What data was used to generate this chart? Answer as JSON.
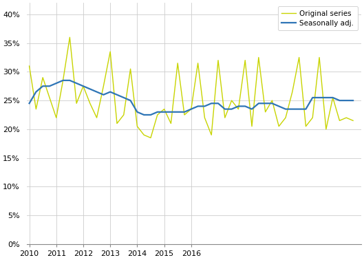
{
  "original_series": [
    31.0,
    23.5,
    29.0,
    25.5,
    22.0,
    28.5,
    36.0,
    24.5,
    27.5,
    24.5,
    22.0,
    27.5,
    33.5,
    21.0,
    22.5,
    30.5,
    20.5,
    19.0,
    18.5,
    22.5,
    23.5,
    21.0,
    31.5,
    22.5,
    23.5,
    31.5,
    22.0,
    19.0,
    32.0,
    22.0,
    25.0,
    23.5,
    32.0,
    20.5,
    32.5,
    23.0,
    25.0,
    20.5,
    22.0,
    26.5,
    32.5,
    20.5,
    22.0,
    32.5,
    20.0,
    25.5,
    21.5,
    22.0,
    21.5
  ],
  "seasonally_adj": [
    24.5,
    26.5,
    27.5,
    27.5,
    28.0,
    28.5,
    28.5,
    28.0,
    27.5,
    27.0,
    26.5,
    26.0,
    26.5,
    26.0,
    25.5,
    25.0,
    23.0,
    22.5,
    22.5,
    23.0,
    23.0,
    23.0,
    23.0,
    23.0,
    23.5,
    24.0,
    24.0,
    24.5,
    24.5,
    23.5,
    23.5,
    24.0,
    24.0,
    23.5,
    24.5,
    24.5,
    24.5,
    24.0,
    23.5,
    23.5,
    23.5,
    23.5,
    25.5,
    25.5,
    25.5,
    25.5,
    25.0,
    25.0,
    25.0
  ],
  "ylim": [
    0,
    42
  ],
  "yticks": [
    0,
    5,
    10,
    15,
    20,
    25,
    30,
    35,
    40
  ],
  "original_color": "#c8d400",
  "seasonally_color": "#2e75b6",
  "background_color": "#ffffff",
  "grid_color": "#cccccc",
  "legend_labels": [
    "Original series",
    "Seasonally adj."
  ]
}
